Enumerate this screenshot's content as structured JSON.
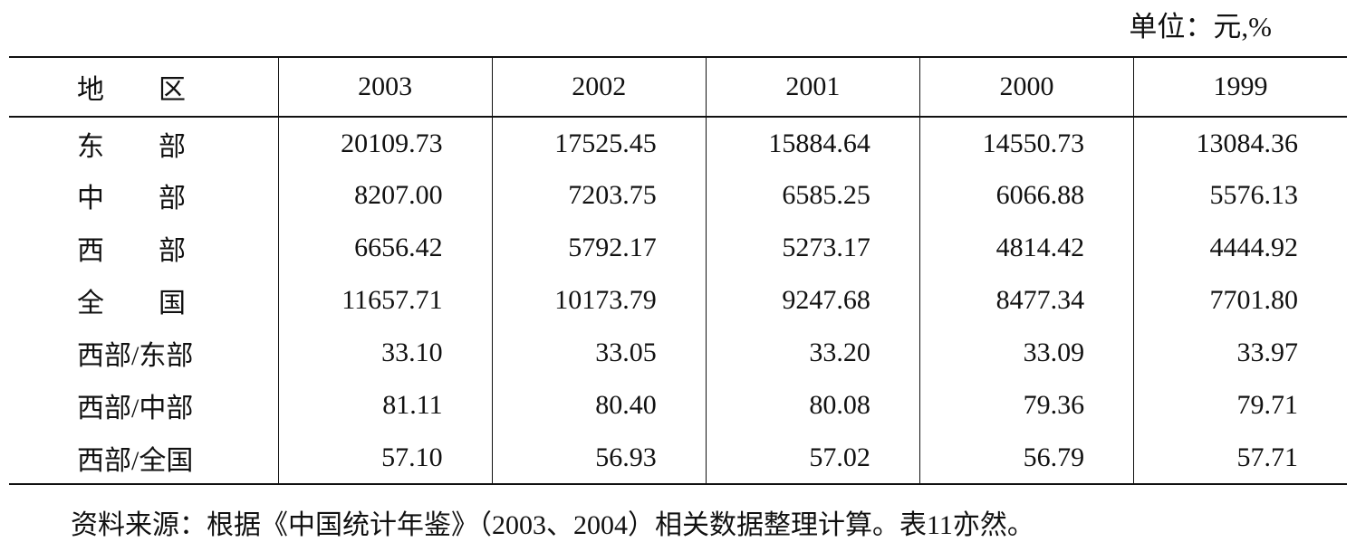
{
  "header": {
    "unit": "单位：元,%"
  },
  "table": {
    "columns": [
      "地　　区",
      "2003",
      "2002",
      "2001",
      "2000",
      "1999"
    ],
    "rows": [
      [
        "东　　部",
        "20109.73",
        "17525.45",
        "15884.64",
        "14550.73",
        "13084.36"
      ],
      [
        "中　　部",
        "8207.00",
        "7203.75",
        "6585.25",
        "6066.88",
        "5576.13"
      ],
      [
        "西　　部",
        "6656.42",
        "5792.17",
        "5273.17",
        "4814.42",
        "4444.92"
      ],
      [
        "全　　国",
        "11657.71",
        "10173.79",
        "9247.68",
        "8477.34",
        "7701.80"
      ],
      [
        "西部/东部",
        "33.10",
        "33.05",
        "33.20",
        "33.09",
        "33.97"
      ],
      [
        "西部/中部",
        "81.11",
        "80.40",
        "80.08",
        "79.36",
        "79.71"
      ],
      [
        "西部/全国",
        "57.10",
        "56.93",
        "57.02",
        "56.79",
        "57.71"
      ]
    ]
  },
  "footer": {
    "source": "资料来源：根据《中国统计年鉴》（2003、2004）相关数据整理计算。表11亦然。"
  }
}
